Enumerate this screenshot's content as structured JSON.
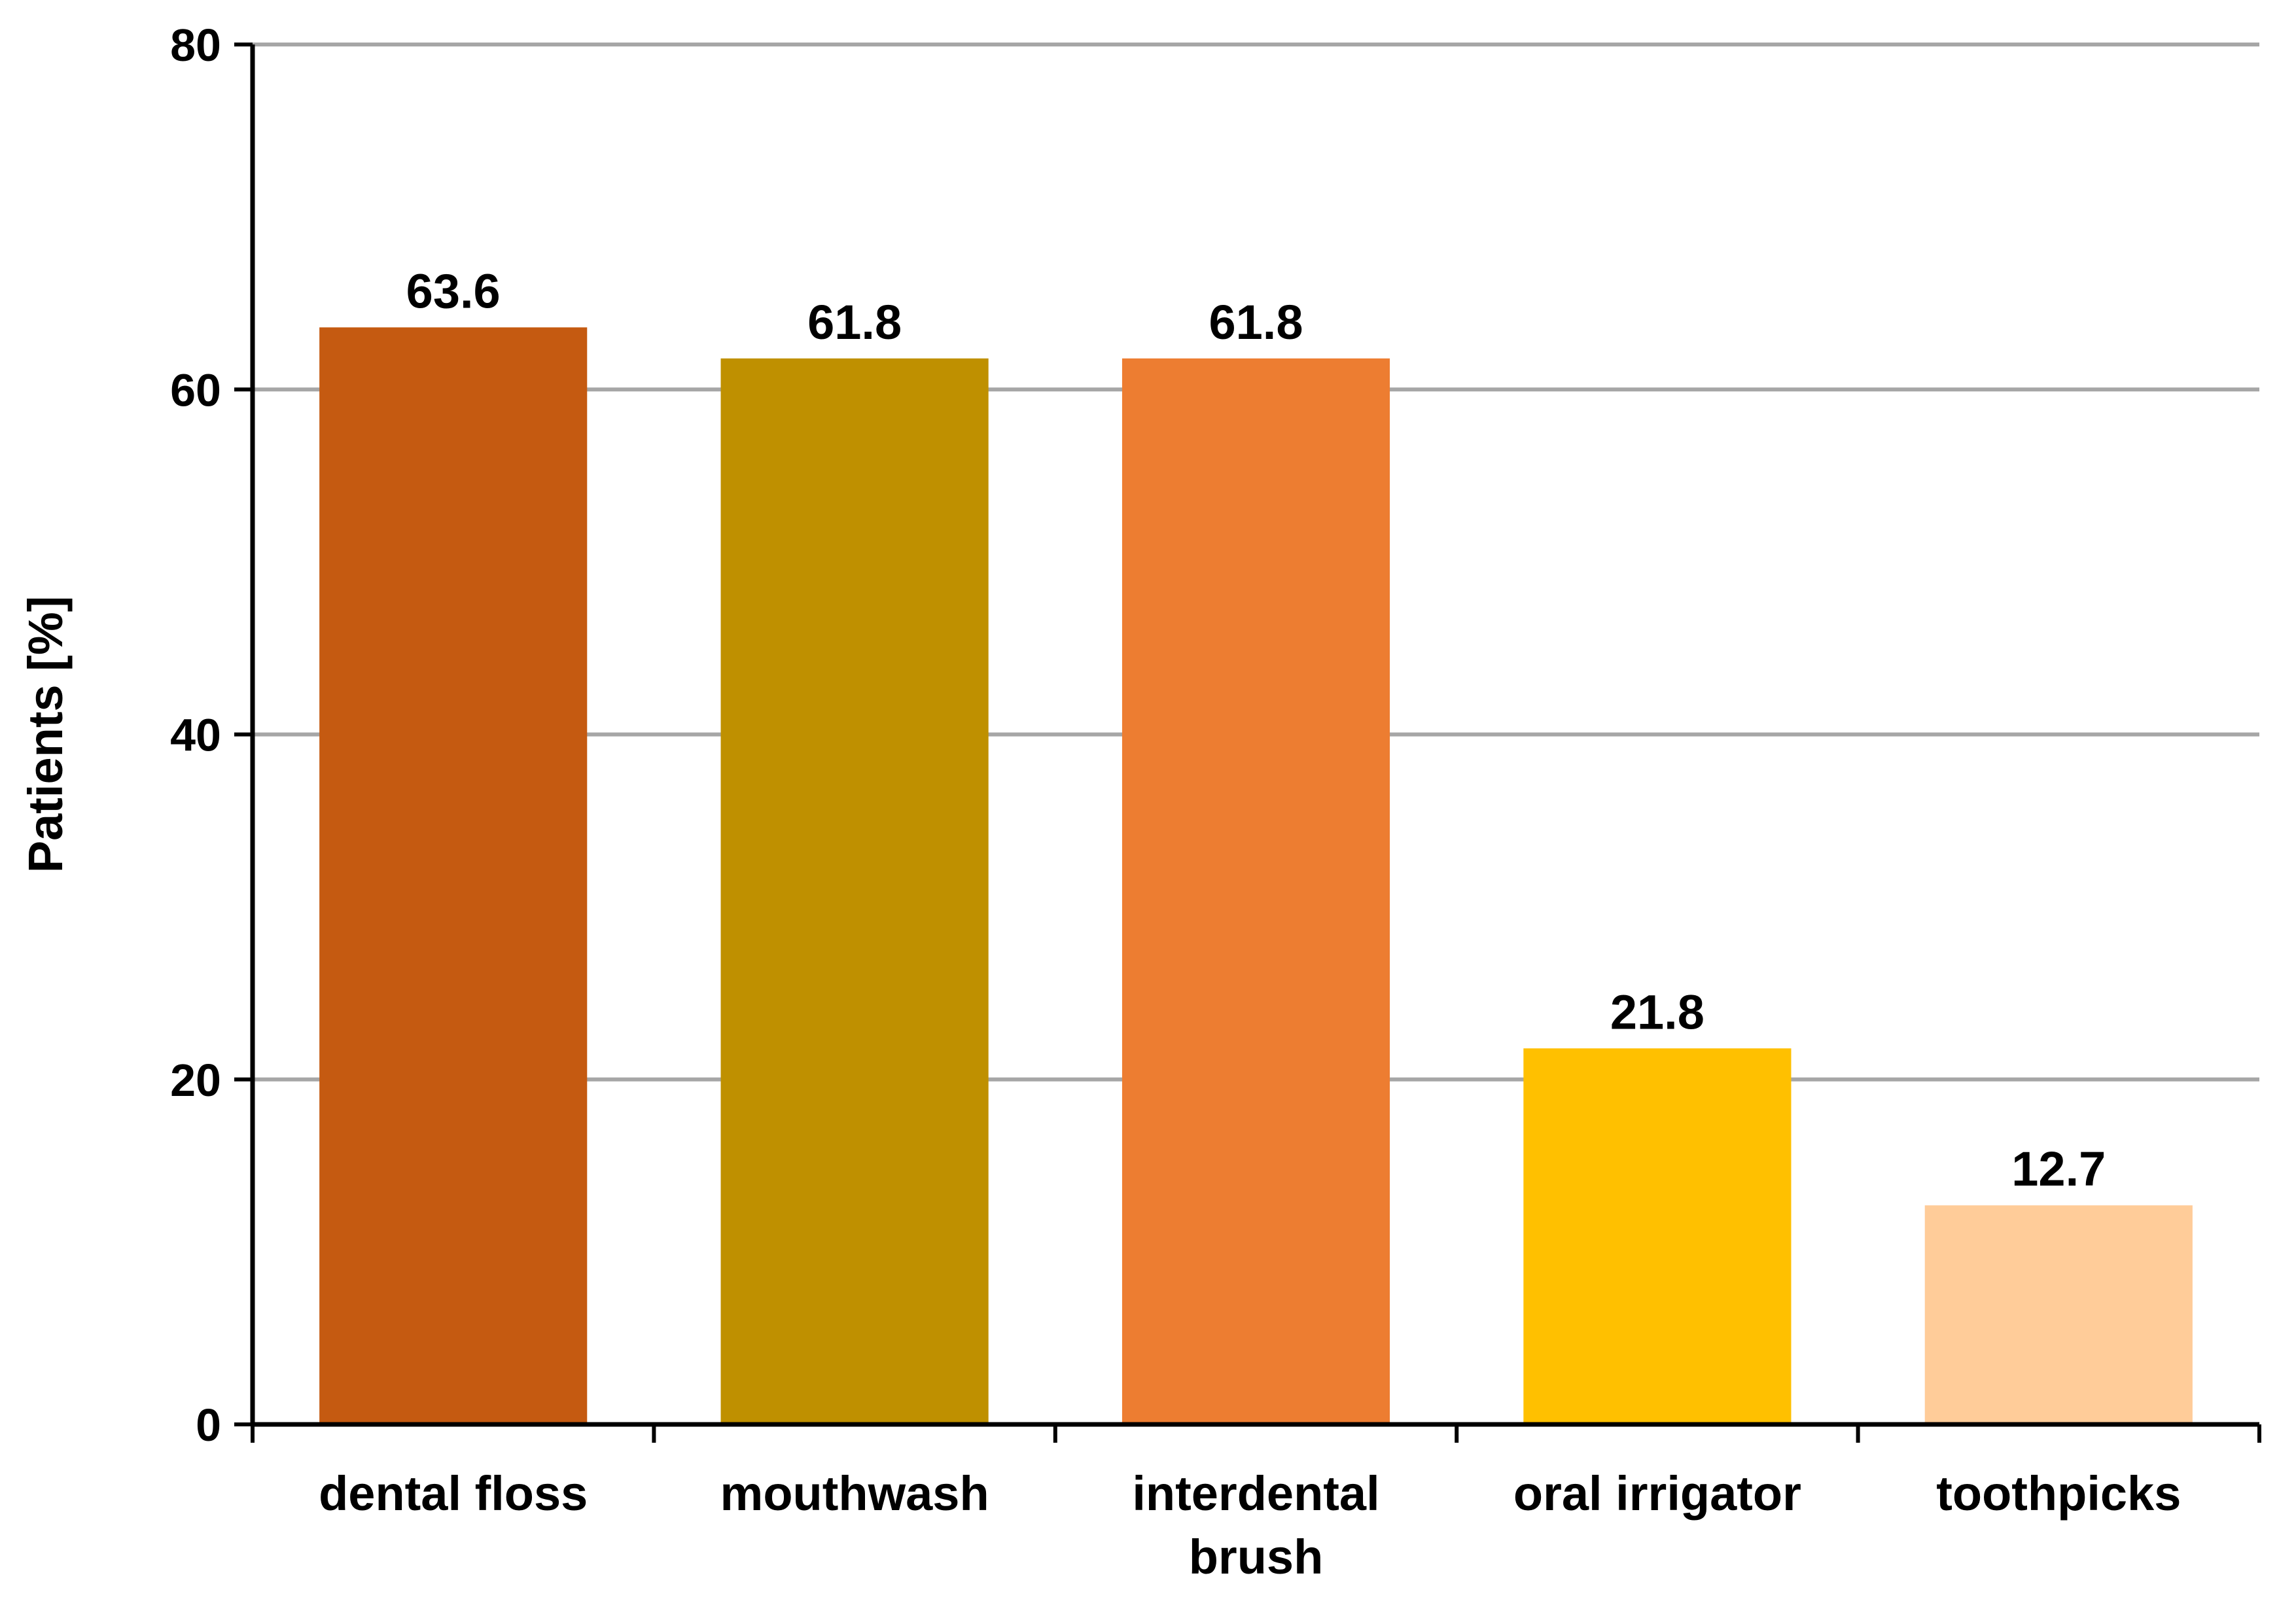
{
  "chart_data": {
    "type": "bar",
    "categories": [
      "dental floss",
      "mouthwash",
      "interdental brush",
      "oral irrigator",
      "toothpicks"
    ],
    "category_lines": [
      [
        "dental floss"
      ],
      [
        "mouthwash"
      ],
      [
        "interdental",
        "brush"
      ],
      [
        "oral irrigator"
      ],
      [
        "toothpicks"
      ]
    ],
    "values": [
      63.6,
      61.8,
      61.8,
      21.8,
      12.7
    ],
    "value_labels": [
      "63.6",
      "61.8",
      "61.8",
      "21.8",
      "12.7"
    ],
    "colors": [
      "#C55A11",
      "#BF9000",
      "#ED7D31",
      "#FFC000",
      "#FFCC99"
    ],
    "xlabel": "",
    "ylabel": "Patients [%]",
    "ylim": [
      0,
      80
    ],
    "yticks": [
      0,
      20,
      40,
      60,
      80
    ],
    "grid": true
  }
}
